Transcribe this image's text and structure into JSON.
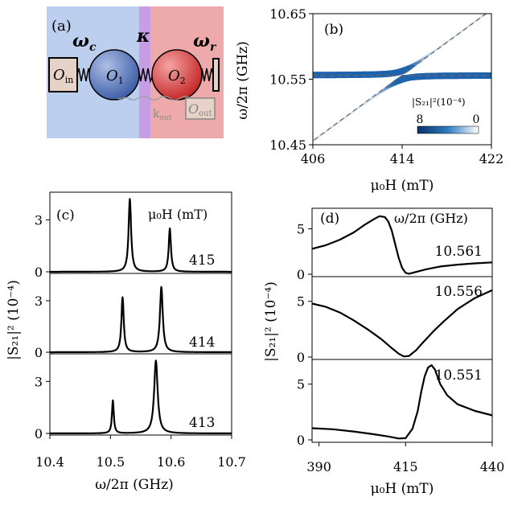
{
  "chart_data": [
    {
      "panel": "a",
      "type": "other",
      "label": "(a)",
      "omega_c": "ω",
      "omega_c_sub": "c",
      "kappa": "κ",
      "omega_r": "ω",
      "omega_r_sub": "r",
      "o_in": "O",
      "o_in_sub": "in",
      "o1": "O",
      "o1_sub": "1",
      "o2": "O",
      "o2_sub": "2",
      "o_out": "O",
      "o_out_sub": "out",
      "k_out": "k",
      "k_out_sub": "out",
      "colors": {
        "left": "#bccfee",
        "middle": "#c79ee6",
        "right": "#eeaaaa",
        "o1": "#3f5fa8",
        "o2": "#c62a2a",
        "box": "#e6d2c6"
      }
    },
    {
      "panel": "b",
      "type": "heatmap",
      "label": "(b)",
      "xlabel": "μ₀H (mT)",
      "ylabel": "ω/2π (GHz)",
      "xlim": [
        406,
        422
      ],
      "ylim": [
        10.45,
        10.65
      ],
      "xticks": [
        "406",
        "414",
        "422"
      ],
      "yticks": [
        "10.65",
        "10.55",
        "10.45"
      ],
      "cavity_frequency": 10.556,
      "coupling": 0.0065,
      "mode_slope": 0.0125,
      "mode_crossing": 414.0,
      "colorbar": {
        "label": "|S₂₁|²(10⁻⁴)",
        "min": "0",
        "max": "8",
        "colors": [
          "#08306b",
          "#ffffff"
        ]
      }
    },
    {
      "panel": "c",
      "type": "line",
      "label": "(c)",
      "xlabel": "ω/2π (GHz)",
      "ylabel": "|S₂₁|² (10⁻⁴)",
      "legend_title": "μ₀H (mT)",
      "xlim": [
        10.4,
        10.7
      ],
      "xticks": [
        "10.4",
        "10.5",
        "10.6",
        "10.7"
      ],
      "ylim": [
        0,
        4.5
      ],
      "yticks": [
        "0",
        "3"
      ],
      "series": [
        {
          "name": "415",
          "peaks": [
            {
              "x": 10.532,
              "height": 4.2,
              "width": 0.0025
            },
            {
              "x": 10.598,
              "height": 2.5,
              "width": 0.0022
            }
          ]
        },
        {
          "name": "414",
          "peaks": [
            {
              "x": 10.52,
              "height": 3.2,
              "width": 0.0023
            },
            {
              "x": 10.584,
              "height": 3.8,
              "width": 0.0028
            }
          ]
        },
        {
          "name": "413",
          "peaks": [
            {
              "x": 10.504,
              "height": 1.9,
              "width": 0.0018
            },
            {
              "x": 10.575,
              "height": 4.2,
              "width": 0.0035
            }
          ]
        }
      ]
    },
    {
      "panel": "d",
      "type": "line",
      "label": "(d)",
      "xlabel": "μ₀H (mT)",
      "ylabel": "|S₂₁|² (10⁻⁴)",
      "legend_title": "ω/2π (GHz)",
      "xlim": [
        388,
        440
      ],
      "xticks": [
        "390",
        "415",
        "440"
      ],
      "ylim": [
        0,
        7
      ],
      "yticks": [
        "0",
        "5"
      ],
      "series": [
        {
          "name": "10.561",
          "points": [
            [
              388,
              2.8
            ],
            [
              392,
              3.2
            ],
            [
              396,
              3.8
            ],
            [
              400,
              4.6
            ],
            [
              403,
              5.4
            ],
            [
              406,
              6.1
            ],
            [
              407.5,
              6.4
            ],
            [
              409,
              6.3
            ],
            [
              410,
              5.8
            ],
            [
              411,
              4.8
            ],
            [
              412,
              3.3
            ],
            [
              413,
              1.8
            ],
            [
              414,
              0.7
            ],
            [
              415,
              0.15
            ],
            [
              416,
              0.05
            ],
            [
              418,
              0.25
            ],
            [
              421,
              0.55
            ],
            [
              425,
              0.85
            ],
            [
              430,
              1.05
            ],
            [
              435,
              1.2
            ],
            [
              440,
              1.3
            ]
          ]
        },
        {
          "name": "10.556",
          "points": [
            [
              388,
              4.8
            ],
            [
              392,
              4.5
            ],
            [
              396,
              4.0
            ],
            [
              400,
              3.3
            ],
            [
              404,
              2.5
            ],
            [
              408,
              1.6
            ],
            [
              411,
              0.8
            ],
            [
              413,
              0.3
            ],
            [
              414.5,
              0.05
            ],
            [
              416,
              0.1
            ],
            [
              418,
              0.6
            ],
            [
              420,
              1.3
            ],
            [
              423,
              2.3
            ],
            [
              426,
              3.2
            ],
            [
              430,
              4.3
            ],
            [
              435,
              5.3
            ],
            [
              440,
              6.0
            ]
          ]
        },
        {
          "name": "10.551",
          "points": [
            [
              388,
              1.05
            ],
            [
              394,
              0.95
            ],
            [
              400,
              0.75
            ],
            [
              406,
              0.5
            ],
            [
              410,
              0.3
            ],
            [
              413,
              0.12
            ],
            [
              415,
              0.15
            ],
            [
              417,
              1.0
            ],
            [
              418.5,
              2.6
            ],
            [
              419.5,
              4.3
            ],
            [
              420.5,
              5.7
            ],
            [
              421.5,
              6.5
            ],
            [
              422.5,
              6.7
            ],
            [
              423.5,
              6.3
            ],
            [
              425,
              5.0
            ],
            [
              427,
              4.0
            ],
            [
              430,
              3.2
            ],
            [
              435,
              2.6
            ],
            [
              440,
              2.2
            ]
          ]
        }
      ]
    }
  ]
}
